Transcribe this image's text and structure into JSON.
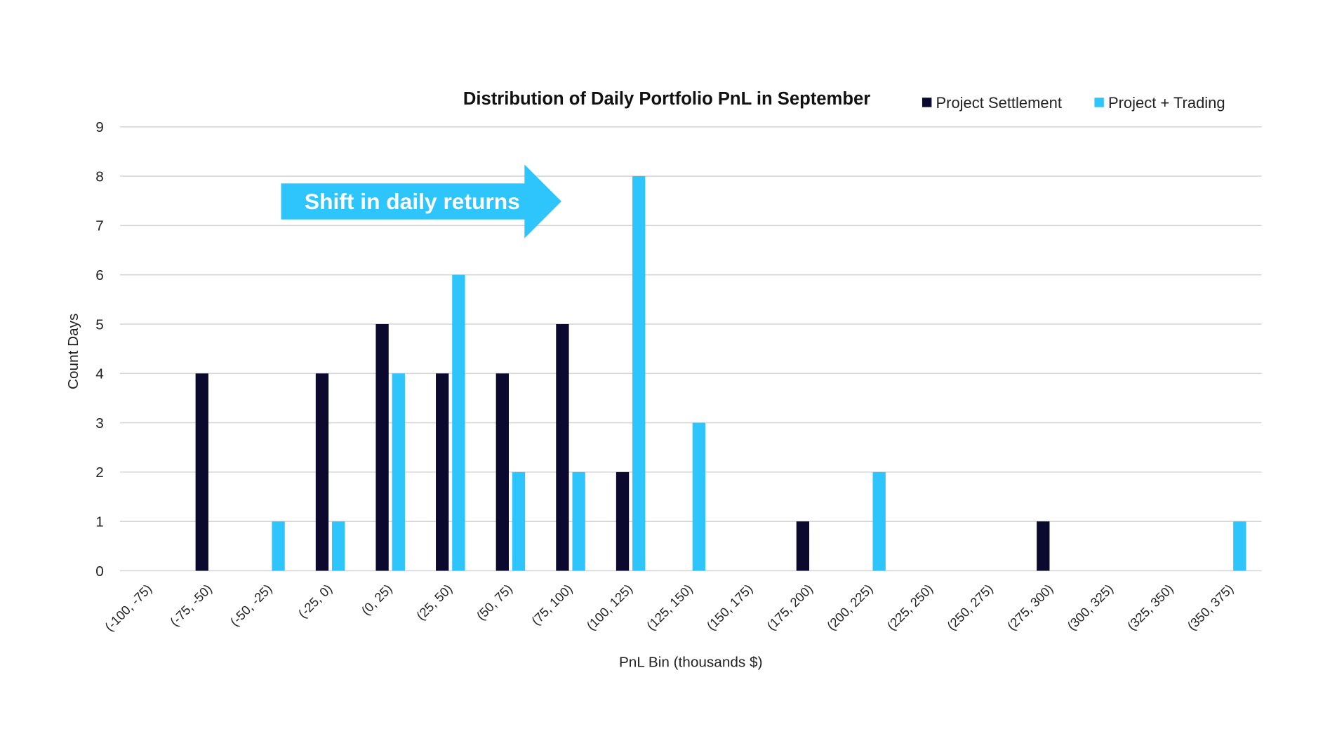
{
  "chart_data": {
    "type": "bar",
    "title": "Distribution of Daily Portfolio PnL in September",
    "xlabel": "PnL Bin (thousands $)",
    "ylabel": "Count Days",
    "ylim": [
      0,
      9
    ],
    "yticks": [
      "0",
      "1",
      "2",
      "3",
      "4",
      "5",
      "6",
      "7",
      "8",
      "9"
    ],
    "grid": true,
    "legend_position": "top-right",
    "categories": [
      "(-100, -75)",
      "(-75, -50)",
      "(-50, -25)",
      "(-25, 0)",
      "(0, 25)",
      "(25, 50)",
      "(50, 75)",
      "(75, 100)",
      "(100, 125)",
      "(125, 150)",
      "(150, 175)",
      "(175, 200)",
      "(200, 225)",
      "(225, 250)",
      "(250, 275)",
      "(275, 300)",
      "(300, 325)",
      "(325, 350)",
      "(350, 375)"
    ],
    "series": [
      {
        "name": "Project Settlement",
        "color": "#0b0a2e",
        "values": [
          0,
          4,
          0,
          4,
          5,
          4,
          4,
          5,
          2,
          0,
          0,
          1,
          0,
          0,
          0,
          1,
          0,
          0,
          0
        ]
      },
      {
        "name": "Project + Trading",
        "color": "#2ec4fc",
        "values": [
          0,
          0,
          1,
          1,
          4,
          6,
          2,
          2,
          8,
          3,
          0,
          0,
          2,
          0,
          0,
          0,
          0,
          0,
          1
        ]
      }
    ],
    "annotation": {
      "text": "Shift in daily returns",
      "color": "#2ec4fc",
      "icon": "right-arrow"
    }
  }
}
